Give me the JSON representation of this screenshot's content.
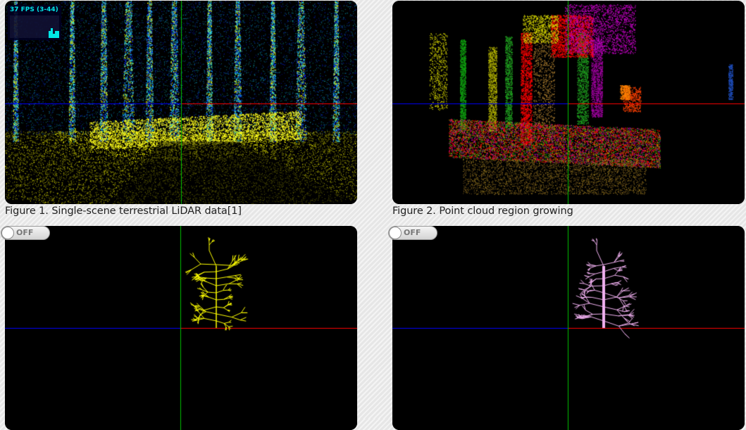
{
  "figures": [
    {
      "caption": "Figure 1. Single-scene terrestrial LiDAR data[1]"
    },
    {
      "caption": "Figure 2. Point cloud region growing"
    }
  ],
  "stats": {
    "fps_text": "37 FPS (3-44)"
  },
  "toggles": [
    {
      "label": "OFF"
    },
    {
      "label": "OFF"
    }
  ],
  "colors": {
    "background": "#000000",
    "axis_x": "#ff0000",
    "axis_y": "#00c000",
    "axis_z": "#0000ff",
    "skeleton_left": "#ffff00",
    "skeleton_right": "#f0b0f0"
  }
}
